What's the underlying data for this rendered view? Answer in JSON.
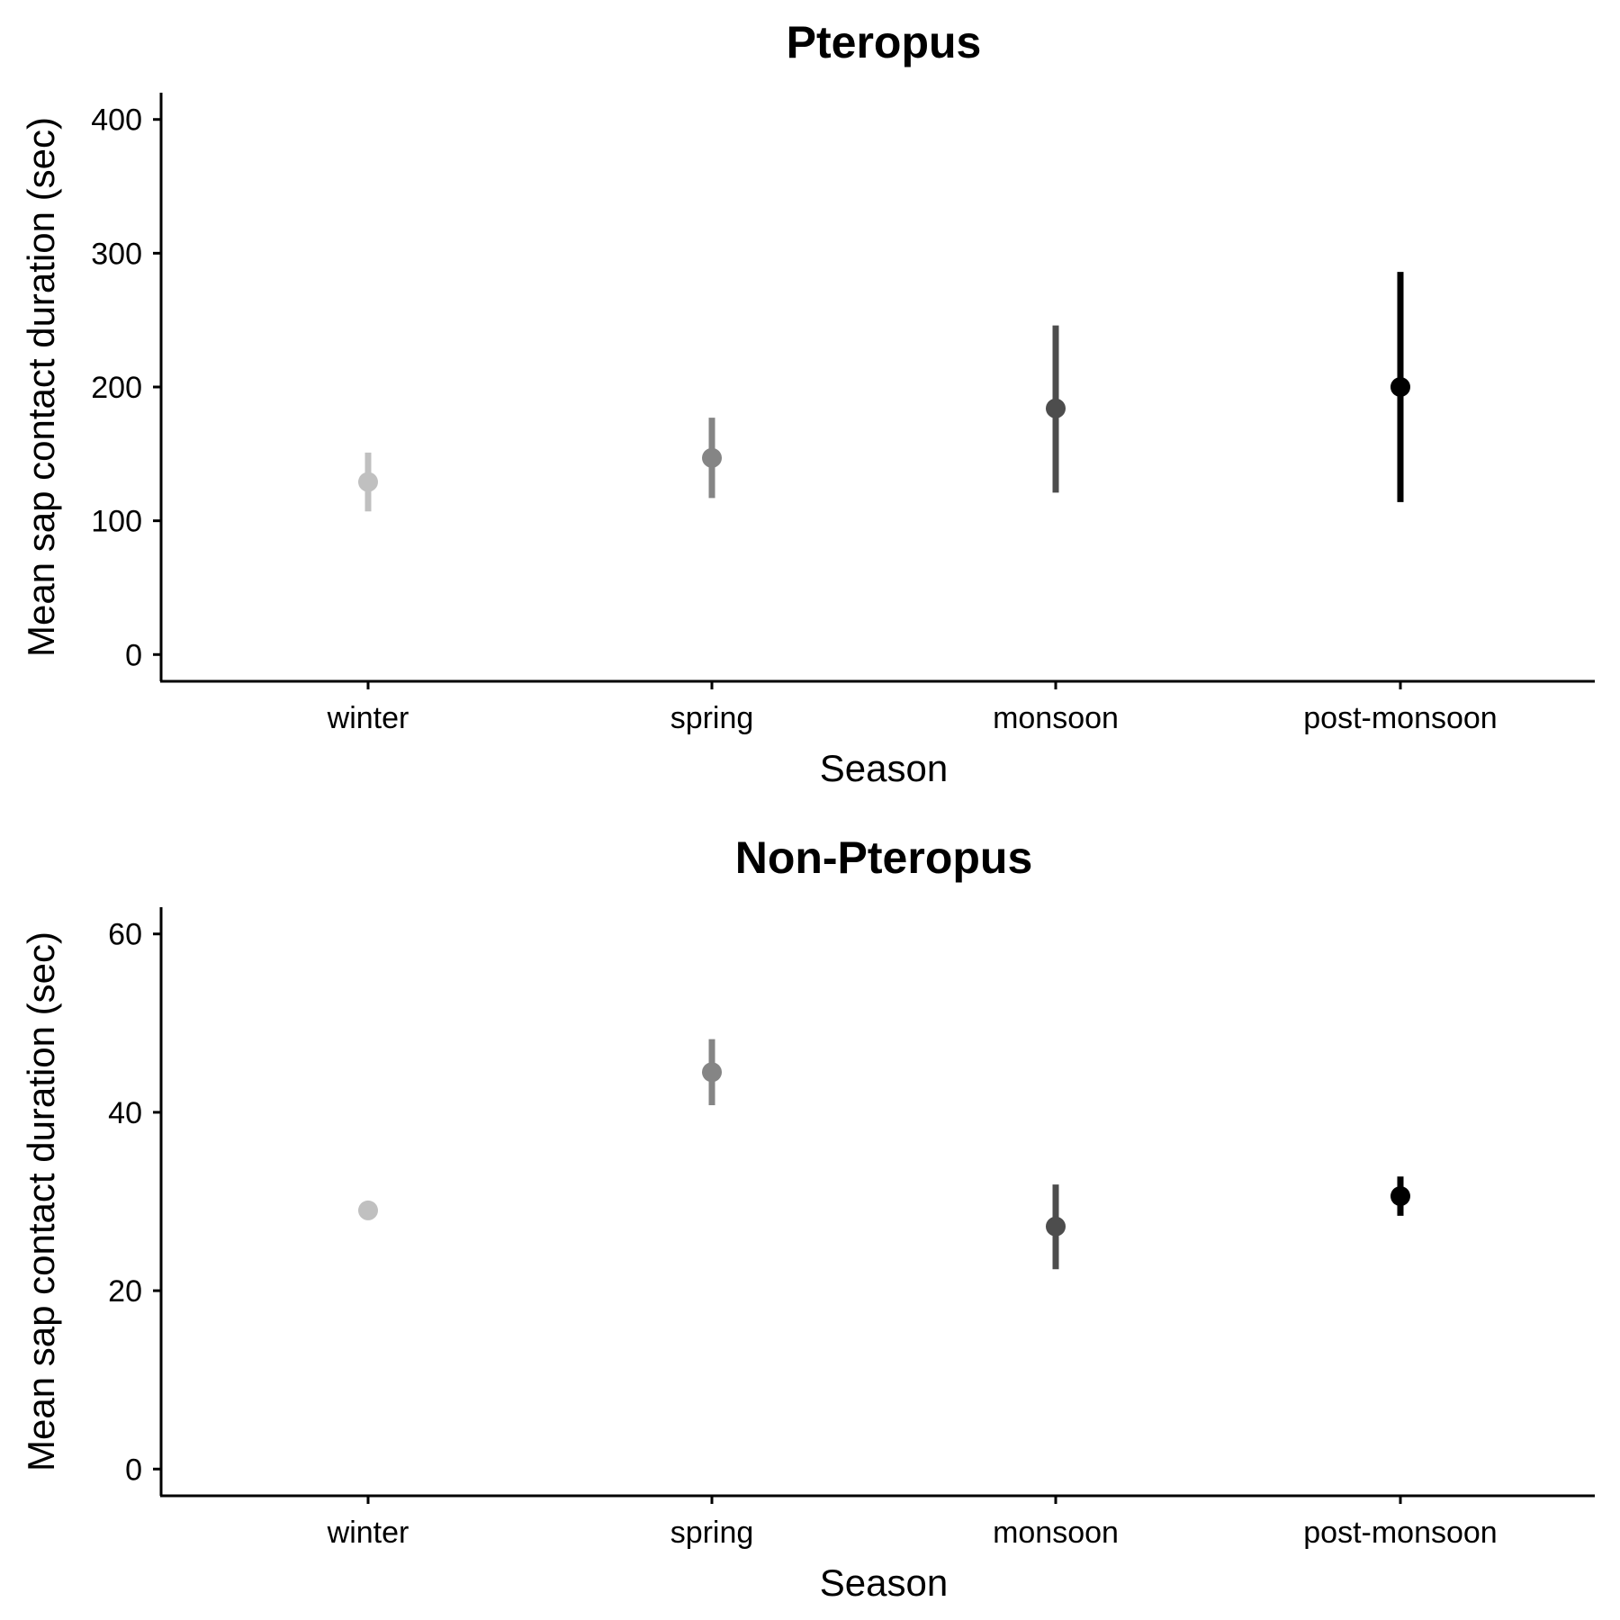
{
  "chart_data": [
    {
      "type": "pointrange",
      "title": "Pteropus",
      "xlabel": "Season",
      "ylabel": "Mean sap contact duration (sec)",
      "categories": [
        "winter",
        "spring",
        "monsoon",
        "post-monsoon"
      ],
      "values": [
        129,
        147,
        184,
        200
      ],
      "lower": [
        107,
        117,
        121,
        114
      ],
      "upper": [
        151,
        177,
        246,
        286
      ],
      "colors": [
        "#c0c0c0",
        "#858585",
        "#4d4d4d",
        "#000000"
      ],
      "yticks": [
        0,
        100,
        200,
        300,
        400
      ],
      "ylim": [
        -20,
        420
      ],
      "grid": false,
      "legend": "none"
    },
    {
      "type": "pointrange",
      "title": "Non-Pteropus",
      "xlabel": "Season",
      "ylabel": "Mean sap contact duration (sec)",
      "categories": [
        "winter",
        "spring",
        "monsoon",
        "post-monsoon"
      ],
      "values": [
        29,
        44.5,
        27.2,
        30.6
      ],
      "lower": [
        29,
        40.8,
        22.4,
        28.4
      ],
      "upper": [
        29,
        48.2,
        31.9,
        32.8
      ],
      "colors": [
        "#c0c0c0",
        "#858585",
        "#4d4d4d",
        "#000000"
      ],
      "yticks": [
        0,
        20,
        40,
        60
      ],
      "ylim": [
        -3,
        63
      ],
      "grid": false,
      "legend": "none"
    }
  ]
}
